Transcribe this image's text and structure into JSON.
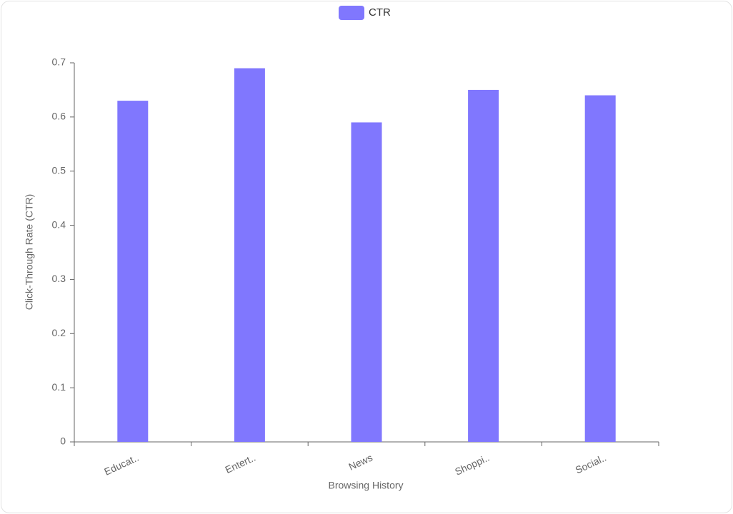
{
  "chart_data": {
    "type": "bar",
    "x_label": "Browsing History",
    "y_label": "Click-Through Rate (CTR)",
    "categories": [
      "Educat..",
      "Entert..",
      "News",
      "Shoppi..",
      "Social.."
    ],
    "series": [
      {
        "name": "CTR",
        "color": "#8077fe",
        "values": [
          0.63,
          0.69,
          0.59,
          0.65,
          0.64
        ]
      }
    ],
    "ylim": [
      0,
      0.7
    ],
    "yticks": [
      0,
      0.1,
      0.2,
      0.3,
      0.4,
      0.5,
      0.6,
      0.7
    ],
    "grid": false,
    "legend": "top"
  }
}
